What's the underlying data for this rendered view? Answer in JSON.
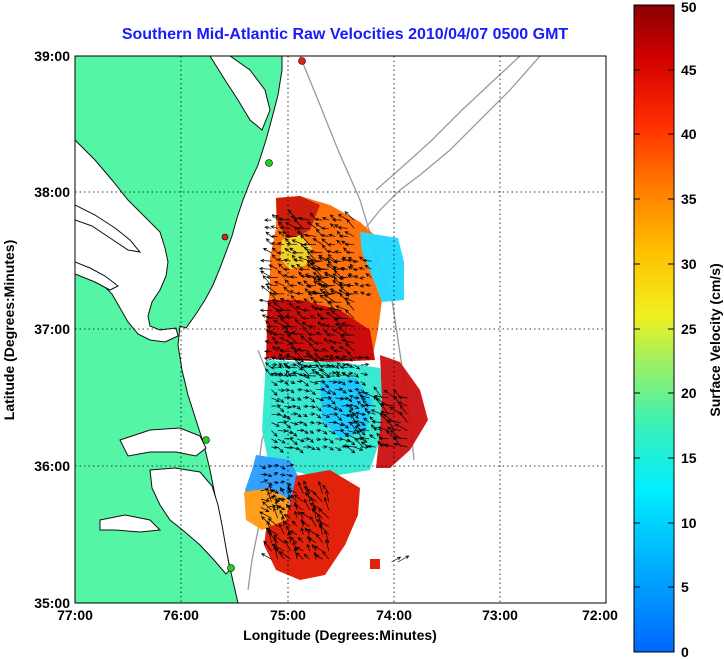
{
  "title": "Southern Mid-Atlantic Raw Velocities 2010/04/07 0500 GMT",
  "xlabel": "Longitude (Degrees:Minutes)",
  "ylabel": "Latitude (Degrees:Minutes)",
  "colorbar_label": "Surface Velocity (cm/s)",
  "x_ticks": [
    "77:00",
    "76:00",
    "75:00",
    "74:00",
    "73:00",
    "72:00"
  ],
  "y_ticks": [
    "39:00",
    "38:00",
    "37:00",
    "36:00",
    "35:00"
  ],
  "colorbar_ticks": [
    "0",
    "5",
    "10",
    "15",
    "20",
    "25",
    "30",
    "35",
    "40",
    "45",
    "50"
  ],
  "colors": {
    "land": "#55f5a6",
    "coast_outline": "#111111",
    "bathymetry": "#9a9a9a",
    "grid": "#000000",
    "title": "#1a1aff",
    "station_green": "#22d022",
    "station_red": "#e02020"
  },
  "chart_data": {
    "type": "heatmap",
    "title": "Southern Mid-Atlantic Raw Velocities 2010/04/07 0500 GMT",
    "xlabel": "Longitude (Degrees:Minutes)",
    "ylabel": "Latitude (Degrees:Minutes)",
    "xlim": [
      -77,
      -72
    ],
    "ylim": [
      35,
      39
    ],
    "grid": true,
    "colorbar": {
      "label": "Surface Velocity (cm/s)",
      "range": [
        0,
        50
      ],
      "ticks": [
        0,
        5,
        10,
        15,
        20,
        25,
        30,
        35,
        40,
        45,
        50
      ]
    },
    "stations": [
      {
        "lon": -74.88,
        "lat": 38.95,
        "color": "red"
      },
      {
        "lon": -75.82,
        "lat": 38.25,
        "color": "green"
      },
      {
        "lon": -75.55,
        "lat": 37.7,
        "color": "red"
      },
      {
        "lon": -75.78,
        "lat": 36.19,
        "color": "green"
      },
      {
        "lon": -75.49,
        "lat": 35.23,
        "color": "green"
      }
    ],
    "regions": [
      {
        "name": "north",
        "lon": [
          -75.2,
          -74.3
        ],
        "lat": [
          37.85,
          36.45
        ],
        "speed": 38
      },
      {
        "name": "northeast-slow",
        "lon": [
          -74.8,
          -74.1
        ],
        "lat": [
          37.55,
          37.15
        ],
        "speed": 14
      },
      {
        "name": "middle",
        "lon": [
          -75.0,
          -74.25
        ],
        "lat": [
          36.85,
          36.05
        ],
        "speed": 15
      },
      {
        "name": "east-fast",
        "lon": [
          -74.4,
          -73.8
        ],
        "lat": [
          36.55,
          36.05
        ],
        "speed": 45
      },
      {
        "name": "southwest",
        "lon": [
          -75.3,
          -74.95
        ],
        "lat": [
          36.05,
          35.6
        ],
        "speed": 12
      },
      {
        "name": "south",
        "lon": [
          -75.2,
          -74.5
        ],
        "lat": [
          35.85,
          35.3
        ],
        "speed": 43
      }
    ]
  }
}
